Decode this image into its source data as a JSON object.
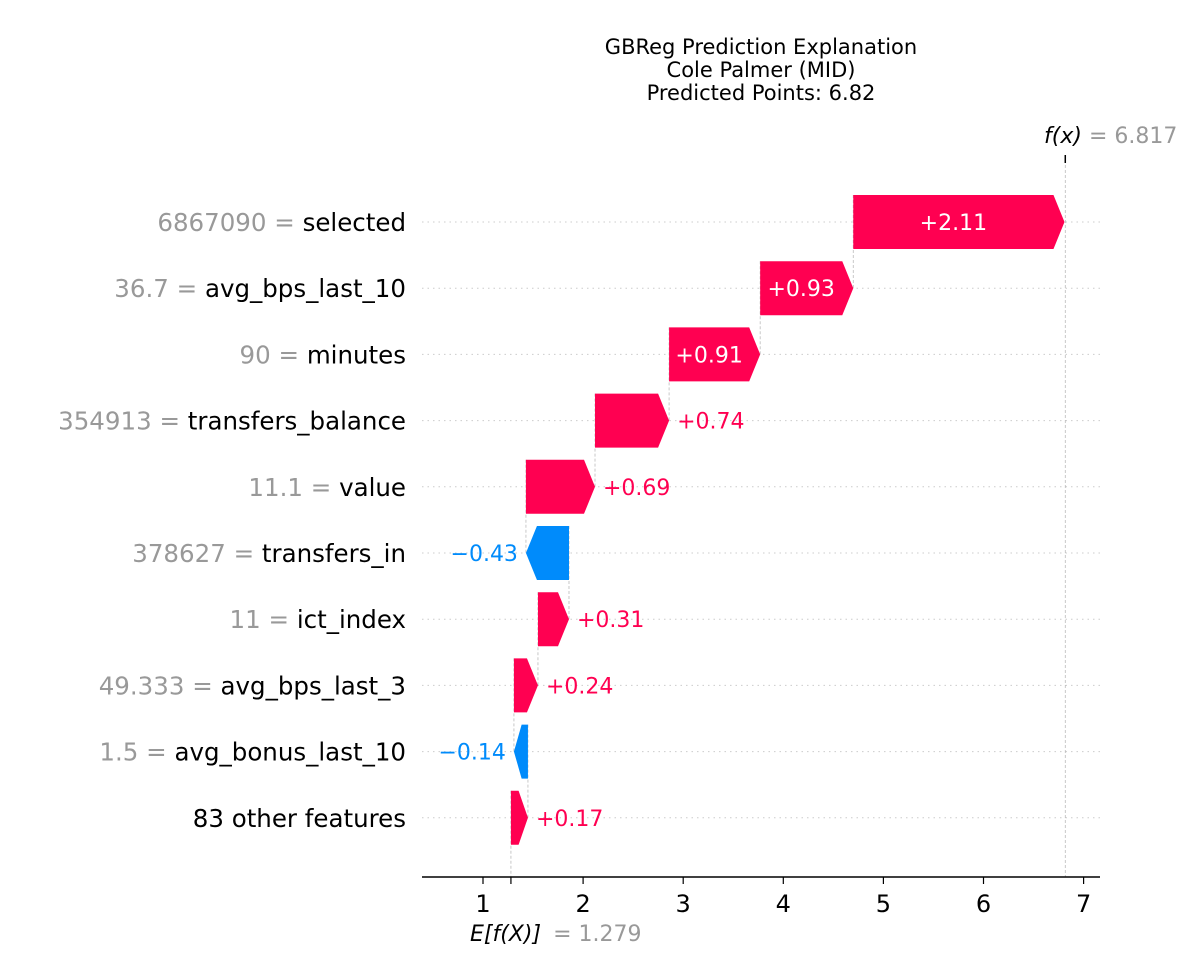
{
  "chart_data": {
    "type": "bar",
    "subtype": "waterfall",
    "title_lines": [
      "GBReg Prediction Explanation",
      "Cole Palmer (MID)",
      "Predicted Points: 6.82"
    ],
    "base_value": 1.279,
    "base_label": {
      "expr": "E[f(X)]",
      "value_text": "= 1.279"
    },
    "output_value": 6.817,
    "output_label": {
      "expr": "f(x)",
      "value_text": "= 6.817"
    },
    "xlim": [
      0.4,
      7.2
    ],
    "xticks": [
      1,
      2,
      3,
      4,
      5,
      6,
      7
    ],
    "xtick_labels": [
      "1",
      "2",
      "3",
      "4",
      "5",
      "6",
      "7"
    ],
    "grid": "horizontal dotted",
    "features": [
      {
        "value_text": "6867090 =",
        "name": "selected",
        "contribution": 2.11,
        "label": "+2.11"
      },
      {
        "value_text": "36.7 =",
        "name": "avg_bps_last_10",
        "contribution": 0.93,
        "label": "+0.93"
      },
      {
        "value_text": "90 =",
        "name": "minutes",
        "contribution": 0.91,
        "label": "+0.91"
      },
      {
        "value_text": "354913 =",
        "name": "transfers_balance",
        "contribution": 0.74,
        "label": "+0.74"
      },
      {
        "value_text": "11.1 =",
        "name": "value",
        "contribution": 0.69,
        "label": "+0.69"
      },
      {
        "value_text": "378627 =",
        "name": "transfers_in",
        "contribution": -0.43,
        "label": "−0.43"
      },
      {
        "value_text": "11 =",
        "name": "ict_index",
        "contribution": 0.31,
        "label": "+0.31"
      },
      {
        "value_text": "49.333 =",
        "name": "avg_bps_last_3",
        "contribution": 0.24,
        "label": "+0.24"
      },
      {
        "value_text": "1.5 =",
        "name": "avg_bonus_last_10",
        "contribution": -0.14,
        "label": "−0.14"
      },
      {
        "value_text": "",
        "name": "83 other features",
        "contribution": 0.17,
        "label": "+0.17"
      }
    ],
    "colors": {
      "positive": "#ff0051",
      "negative": "#008bfb",
      "muted_text": "#999999",
      "text": "#000000",
      "grid": "#cccccc"
    }
  }
}
